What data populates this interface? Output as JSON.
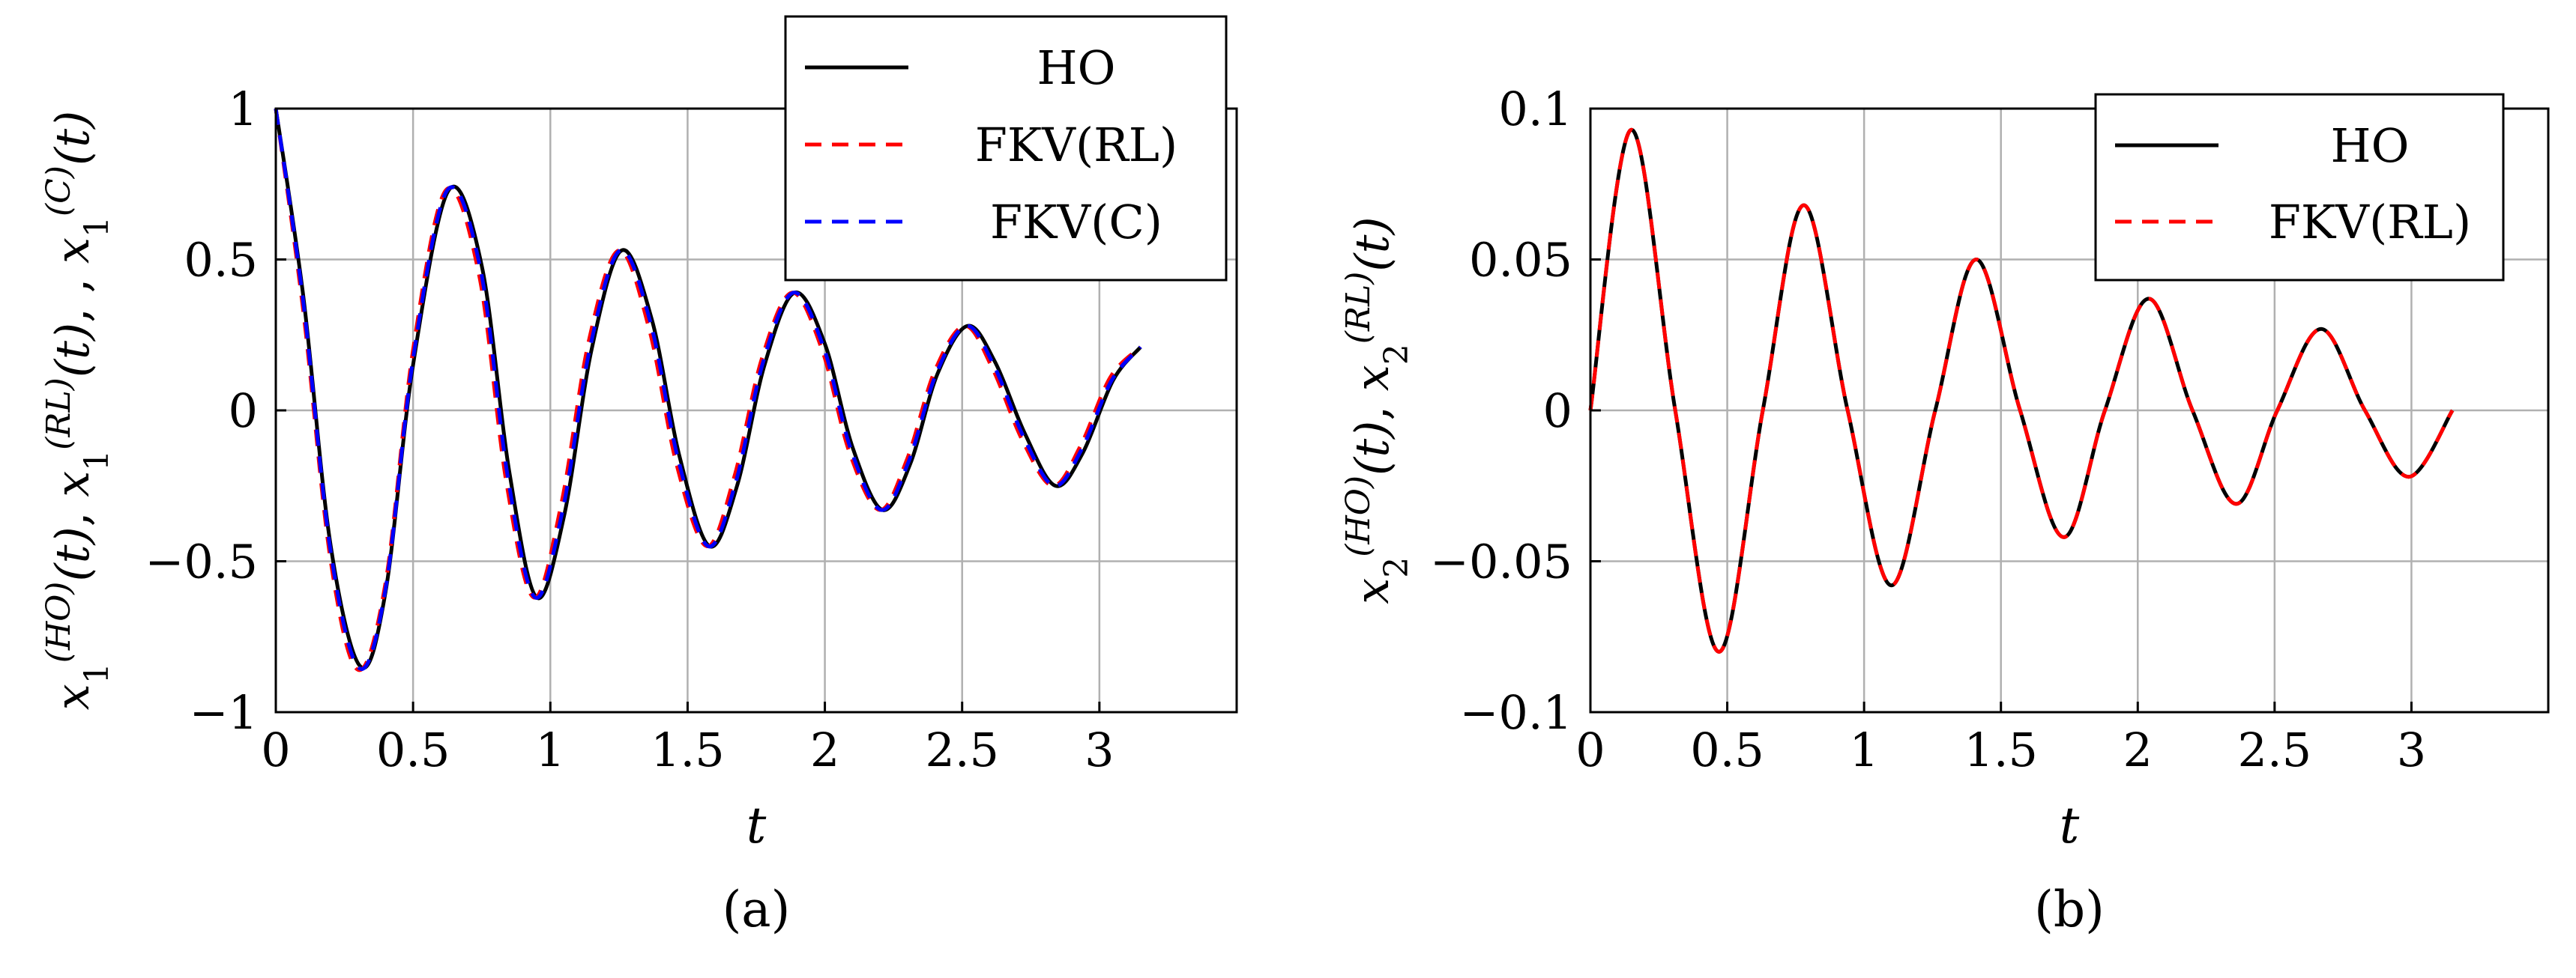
{
  "colors": {
    "ho": "#000000",
    "fkv_rl": "#ff0000",
    "fkv_c": "#0000ff",
    "grid": "#b0b0b0",
    "axis": "#000000"
  },
  "chart_data": [
    {
      "id": "a",
      "type": "line",
      "caption": "(a)",
      "xlabel": "t",
      "ylabel": {
        "terms": [
          {
            "base": "x",
            "sub": "1",
            "sup": "(HO)"
          },
          {
            "base": "x",
            "sub": "1",
            "sup": "(RL)"
          },
          {
            "base": "x",
            "sub": "1",
            "sup": "(C)"
          }
        ],
        "arg": "(t)",
        "separators": [
          ",  ",
          ", ,  "
        ]
      },
      "xlim": [
        0,
        3.5
      ],
      "ylim": [
        -1,
        1
      ],
      "xticks": [
        0,
        0.5,
        1,
        1.5,
        2,
        2.5,
        3
      ],
      "xtick_labels": [
        "0",
        "0.5",
        "1",
        "1.5",
        "2",
        "2.5",
        "3"
      ],
      "yticks": [
        -1,
        -0.5,
        0,
        0.5,
        1
      ],
      "ytick_labels": [
        "−1",
        "−0.5",
        "0",
        "0.5",
        "1"
      ],
      "grid": true,
      "legend_position": "top-right",
      "series": [
        {
          "name": "HO",
          "color_key": "ho",
          "style": "solid",
          "x": [
            0,
            0.1,
            0.2,
            0.31,
            0.4,
            0.5,
            0.63,
            0.75,
            0.85,
            0.95,
            1.05,
            1.15,
            1.26,
            1.37,
            1.47,
            1.58,
            1.68,
            1.78,
            1.89,
            2.0,
            2.1,
            2.21,
            2.31,
            2.41,
            2.52,
            2.62,
            2.73,
            2.84,
            2.94,
            3.05,
            3.15
          ],
          "y": [
            1.0,
            0.38,
            -0.45,
            -0.85,
            -0.6,
            0.15,
            0.73,
            0.48,
            -0.2,
            -0.62,
            -0.35,
            0.2,
            0.53,
            0.3,
            -0.15,
            -0.45,
            -0.25,
            0.15,
            0.39,
            0.22,
            -0.12,
            -0.33,
            -0.18,
            0.12,
            0.28,
            0.16,
            -0.08,
            -0.25,
            -0.14,
            0.1,
            0.21
          ]
        },
        {
          "name": "FKV(RL)",
          "color_key": "fkv_rl",
          "style": "dashed",
          "x": [
            0,
            0.1,
            0.2,
            0.3,
            0.4,
            0.5,
            0.62,
            0.74,
            0.84,
            0.94,
            1.04,
            1.14,
            1.25,
            1.36,
            1.46,
            1.57,
            1.67,
            1.77,
            1.88,
            1.99,
            2.09,
            2.2,
            2.3,
            2.4,
            2.51,
            2.61,
            2.72,
            2.83,
            2.93,
            3.04,
            3.15
          ],
          "y": [
            1.0,
            0.33,
            -0.5,
            -0.86,
            -0.57,
            0.2,
            0.73,
            0.45,
            -0.24,
            -0.62,
            -0.31,
            0.23,
            0.53,
            0.27,
            -0.18,
            -0.45,
            -0.22,
            0.17,
            0.39,
            0.2,
            -0.14,
            -0.33,
            -0.16,
            0.13,
            0.28,
            0.14,
            -0.1,
            -0.25,
            -0.12,
            0.11,
            0.21
          ]
        },
        {
          "name": "FKV(C)",
          "color_key": "fkv_c",
          "style": "dashed",
          "x": [
            0,
            0.1,
            0.2,
            0.305,
            0.4,
            0.5,
            0.625,
            0.745,
            0.845,
            0.945,
            1.045,
            1.145,
            1.255,
            1.365,
            1.465,
            1.575,
            1.675,
            1.775,
            1.885,
            1.995,
            2.095,
            2.205,
            2.305,
            2.405,
            2.515,
            2.615,
            2.725,
            2.835,
            2.935,
            3.045,
            3.15
          ],
          "y": [
            1.0,
            0.36,
            -0.47,
            -0.855,
            -0.59,
            0.17,
            0.73,
            0.47,
            -0.22,
            -0.62,
            -0.33,
            0.21,
            0.53,
            0.29,
            -0.16,
            -0.45,
            -0.24,
            0.16,
            0.39,
            0.21,
            -0.13,
            -0.33,
            -0.17,
            0.12,
            0.28,
            0.15,
            -0.09,
            -0.25,
            -0.13,
            0.1,
            0.21
          ]
        }
      ]
    },
    {
      "id": "b",
      "type": "line",
      "caption": "(b)",
      "xlabel": "t",
      "ylabel": {
        "terms": [
          {
            "base": "x",
            "sub": "2",
            "sup": "(HO)"
          },
          {
            "base": "x",
            "sub": "2",
            "sup": "(RL)"
          }
        ],
        "arg": "(t)",
        "separators": [
          ",  "
        ]
      },
      "xlim": [
        0,
        3.5
      ],
      "ylim": [
        -0.1,
        0.1
      ],
      "xticks": [
        0,
        0.5,
        1,
        1.5,
        2,
        2.5,
        3
      ],
      "xtick_labels": [
        "0",
        "0.5",
        "1",
        "1.5",
        "2",
        "2.5",
        "3"
      ],
      "yticks": [
        -0.1,
        -0.05,
        0,
        0.05,
        0.1
      ],
      "ytick_labels": [
        "−0.1",
        "−0.05",
        "0",
        "0.05",
        "0.1"
      ],
      "grid": true,
      "legend_position": "top-right",
      "series": [
        {
          "name": "HO",
          "color_key": "ho",
          "style": "solid",
          "x": [
            0,
            0.15,
            0.31,
            0.47,
            0.63,
            0.78,
            0.94,
            1.1,
            1.26,
            1.41,
            1.57,
            1.73,
            1.88,
            2.04,
            2.2,
            2.36,
            2.51,
            2.67,
            2.83,
            2.99,
            3.15
          ],
          "y": [
            0.0,
            0.093,
            0.0,
            -0.08,
            0.0,
            0.068,
            0.0,
            -0.058,
            0.0,
            0.05,
            0.0,
            -0.042,
            0.0,
            0.037,
            0.0,
            -0.031,
            0.0,
            0.027,
            0.0,
            -0.022,
            0.0
          ]
        },
        {
          "name": "FKV(RL)",
          "color_key": "fkv_rl",
          "style": "dashed",
          "x": [
            0,
            0.15,
            0.31,
            0.47,
            0.63,
            0.78,
            0.94,
            1.1,
            1.26,
            1.41,
            1.57,
            1.73,
            1.88,
            2.04,
            2.2,
            2.36,
            2.51,
            2.67,
            2.83,
            2.99,
            3.15
          ],
          "y": [
            0.0,
            0.093,
            0.0,
            -0.08,
            0.0,
            0.068,
            0.0,
            -0.058,
            0.0,
            0.05,
            0.0,
            -0.042,
            0.0,
            0.037,
            0.0,
            -0.031,
            0.0,
            0.027,
            0.0,
            -0.022,
            0.0
          ]
        }
      ]
    }
  ]
}
